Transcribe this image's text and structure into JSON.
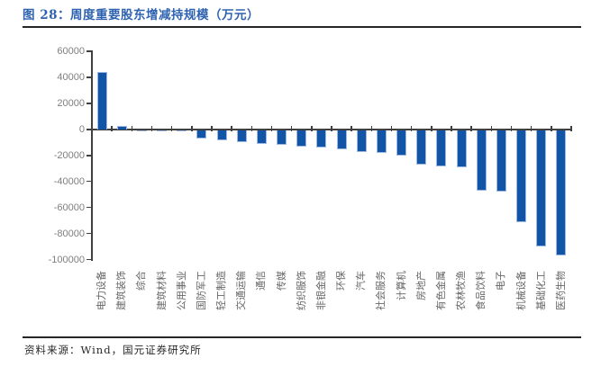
{
  "figure": {
    "title": "图 28：周度重要股东增减持规模（万元）"
  },
  "chart_data": {
    "type": "bar",
    "title": "周度重要股东增减持规模（万元）",
    "unit": "万元",
    "categories": [
      "电力设备",
      "建筑装饰",
      "综合",
      "建筑材料",
      "公用事业",
      "国防军工",
      "轻工制造",
      "交通运输",
      "通信",
      "传媒",
      "纺织服饰",
      "非银金融",
      "环保",
      "汽车",
      "社会服务",
      "计算机",
      "房地产",
      "有色金属",
      "农林牧渔",
      "食品饮料",
      "电子",
      "机械设备",
      "基础化工",
      "医药生物"
    ],
    "values": [
      44000,
      2600,
      -1000,
      -700,
      -300,
      -6800,
      -8200,
      -9600,
      -10900,
      -11700,
      -13400,
      -14200,
      -15200,
      -17400,
      -18100,
      -19900,
      -27100,
      -28200,
      -29400,
      -47200,
      -47900,
      -71000,
      -90000,
      -96700
    ],
    "ylim": [
      -100000,
      60000
    ],
    "ytick_step": 20000,
    "ytick_labels": [
      "60000",
      "40000",
      "20000",
      "0",
      "-20000",
      "-40000",
      "-60000",
      "-80000",
      "-100000"
    ],
    "grid": false,
    "legend": null,
    "colors": {
      "bar_fill": "#1254A6",
      "bar_edge": "#9DB9E3",
      "axis": "#404040",
      "y_tick_label": "#7F7F7F",
      "x_category_label": "#666666"
    }
  },
  "footer": {
    "source": "资料来源：Wind，国元证券研究所"
  },
  "accent": {
    "title_color": "#2E62B0",
    "rule_color": "#262626"
  }
}
